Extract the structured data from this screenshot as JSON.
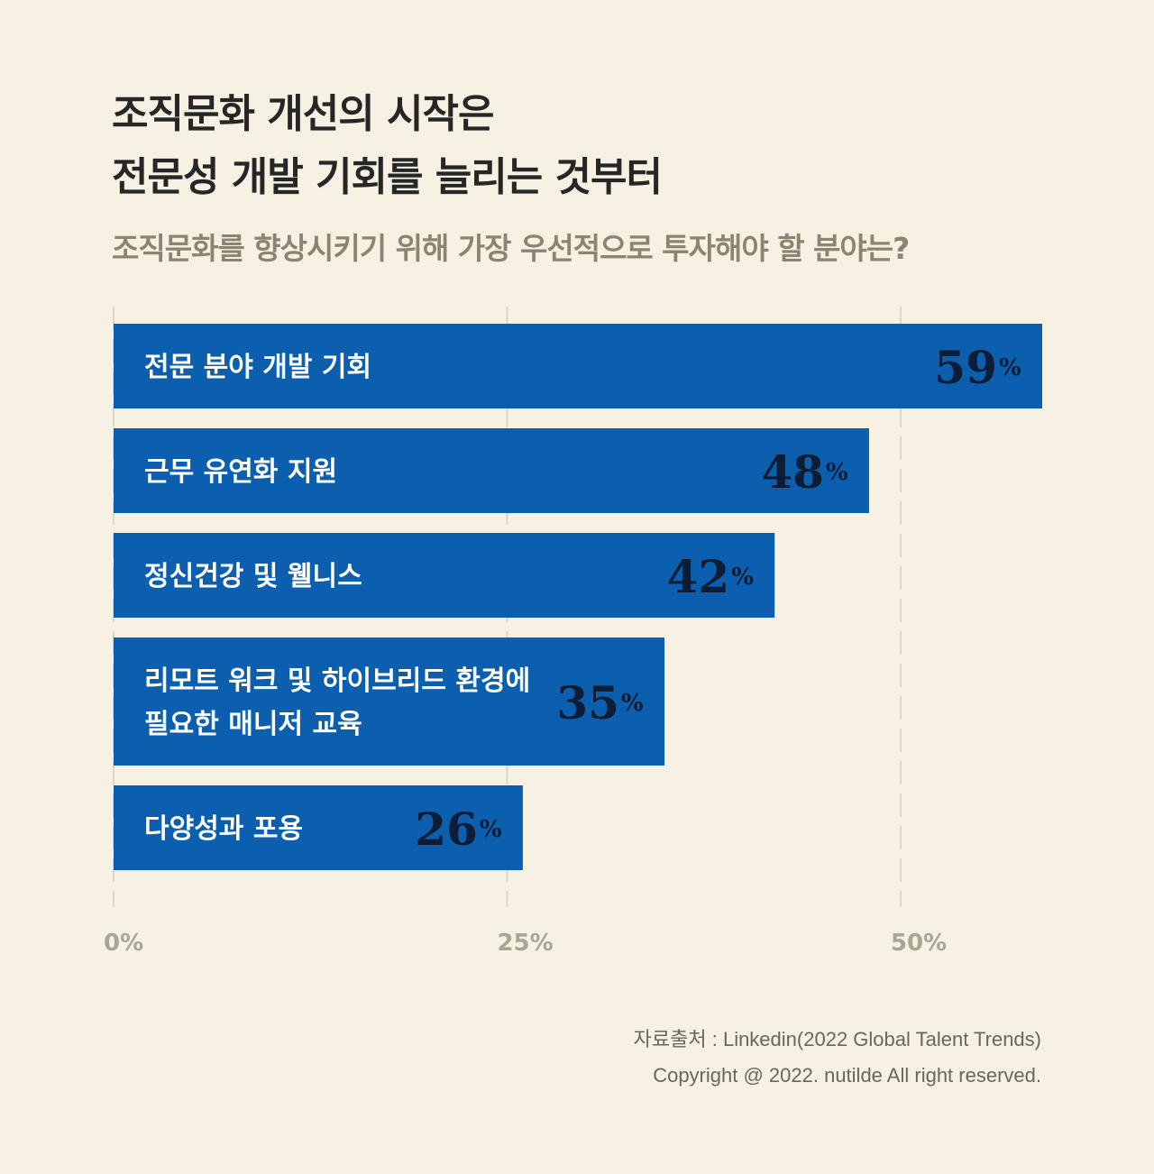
{
  "title": [
    "조직문화 개선의 시작은",
    "전문성 개발 기회를 늘리는 것부터"
  ],
  "subtitle": "조직문화를 향상시키기 위해 가장 우선적으로 투자해야 할 분야는?",
  "source": [
    "자료출처 : Linkedin(2022 Global Talent Trends)",
    "Copyright @ 2022. nutilde All right reserved."
  ],
  "chart_data": {
    "type": "bar",
    "orientation": "horizontal",
    "categories": [
      [
        "전문 분야 개발 기회"
      ],
      [
        "근무 유연화 지원"
      ],
      [
        "정신건강 및 웰니스"
      ],
      [
        "리모트 워크 및 하이브리드 환경에",
        "필요한 매니저 교육"
      ],
      [
        "다양성과 포용"
      ]
    ],
    "values": [
      59,
      48,
      42,
      35,
      26
    ],
    "unit": "%",
    "xlim": [
      0,
      59
    ],
    "xticks": [
      0,
      25,
      50
    ],
    "xtick_labels": [
      "0%",
      "25%",
      "50%"
    ],
    "grid": true,
    "bar_color": "#0b5fae",
    "value_color": "#0e1d36"
  }
}
